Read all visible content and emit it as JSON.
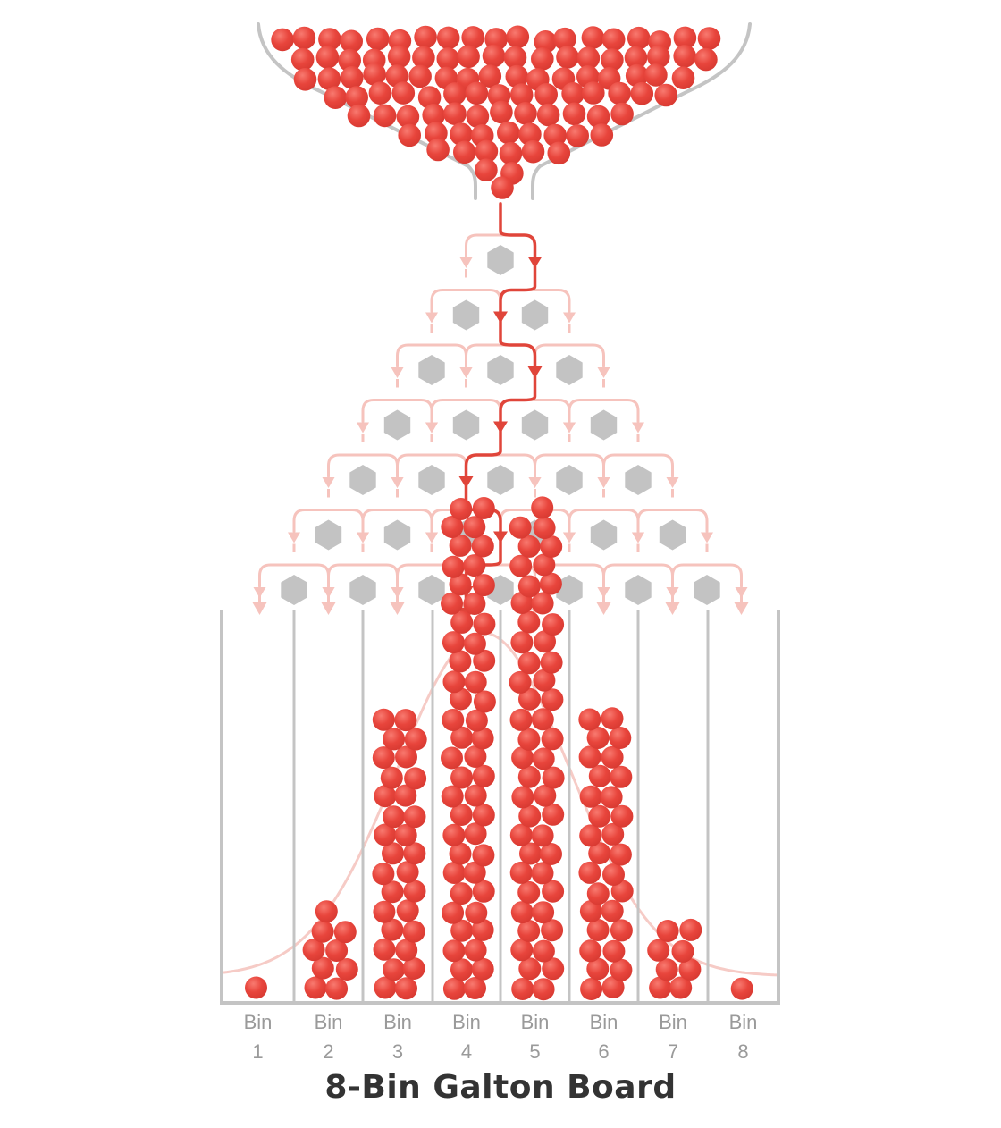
{
  "title": "8-Bin Galton Board",
  "bins": [
    {
      "label": "Bin",
      "number": "1",
      "ball_count": 1
    },
    {
      "label": "Bin",
      "number": "2",
      "ball_count": 9
    },
    {
      "label": "Bin",
      "number": "3",
      "ball_count": 30
    },
    {
      "label": "Bin",
      "number": "4",
      "ball_count": 52
    },
    {
      "label": "Bin",
      "number": "5",
      "ball_count": 51
    },
    {
      "label": "Bin",
      "number": "6",
      "ball_count": 30
    },
    {
      "label": "Bin",
      "number": "7",
      "ball_count": 8
    },
    {
      "label": "Bin",
      "number": "8",
      "ball_count": 1
    }
  ],
  "peg_rows": 7,
  "highlighted_path": [
    "right",
    "left",
    "right",
    "left",
    "left",
    "right",
    "left"
  ],
  "colors": {
    "ball": "#e8453c",
    "ball_highlight": "#f4796f",
    "path_active": "#e0453a",
    "path_faint": "#f6c3bd",
    "peg": "#c3c3c3",
    "frame": "#c4c4c4",
    "curve": "#f6cbc6",
    "label": "#9a9a9a",
    "title": "#333333"
  }
}
